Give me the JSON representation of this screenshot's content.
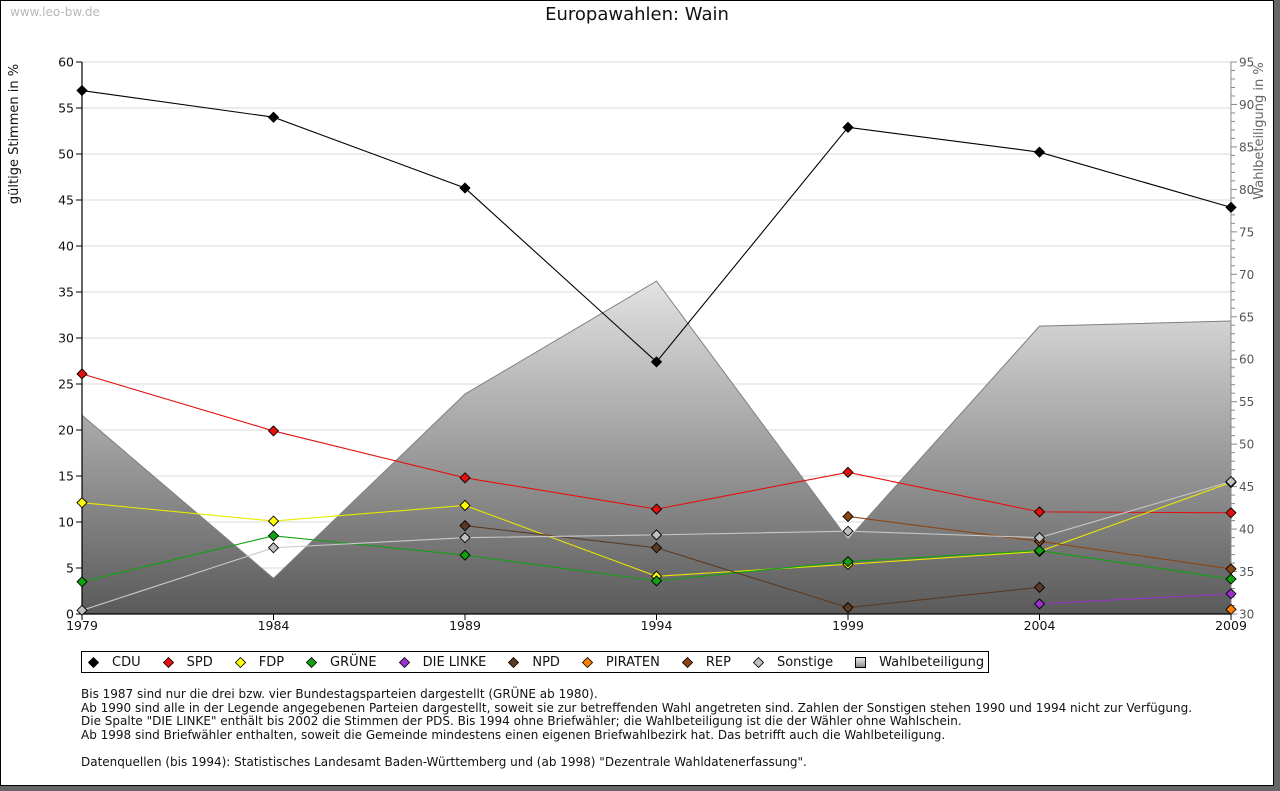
{
  "watermark": "www.leo-bw.de",
  "title": "Europawahlen: Wain",
  "chart_data": {
    "type": "line",
    "title": "Europawahlen: Wain",
    "xlabel": "",
    "ylabel": "gültige Stimmen in %",
    "y2label": "Wahlbeteiligung in %",
    "x": [
      "1979",
      "1984",
      "1989",
      "1994",
      "1999",
      "2004",
      "2009"
    ],
    "ylim": [
      0,
      60
    ],
    "y2lim": [
      30,
      95
    ],
    "yticks": [
      "0",
      "5",
      "10",
      "15",
      "20",
      "25",
      "30",
      "35",
      "40",
      "45",
      "50",
      "55",
      "60"
    ],
    "y2ticks": [
      "30",
      "35",
      "40",
      "45",
      "50",
      "55",
      "60",
      "65",
      "70",
      "75",
      "80",
      "85",
      "90",
      "95"
    ],
    "grid": true,
    "legend_position": "bottom",
    "area_series": {
      "name": "Wahlbeteiligung",
      "axis": "right",
      "color": "#888888",
      "values": [
        53.4,
        34.2,
        55.9,
        69.2,
        38.8,
        63.9,
        64.5
      ]
    },
    "series": [
      {
        "name": "CDU",
        "color": "#000000",
        "line": "#000000",
        "values": [
          56.9,
          54.0,
          46.3,
          27.4,
          52.9,
          50.2,
          44.2
        ]
      },
      {
        "name": "SPD",
        "color": "#e31010",
        "line": "#e31010",
        "values": [
          26.1,
          19.9,
          14.8,
          11.4,
          15.4,
          11.1,
          11.0
        ]
      },
      {
        "name": "FDP",
        "color": "#ffff00",
        "line": "#e8e800",
        "values": [
          12.1,
          10.1,
          11.8,
          4.1,
          5.4,
          6.8,
          14.3
        ]
      },
      {
        "name": "GRÜNE",
        "color": "#10a010",
        "line": "#10a010",
        "values": [
          3.5,
          8.5,
          6.4,
          3.6,
          5.7,
          6.9,
          3.8
        ]
      },
      {
        "name": "DIE LINKE",
        "color": "#9932cc",
        "line": "#9932cc",
        "values": [
          null,
          null,
          null,
          null,
          null,
          1.1,
          2.2
        ]
      },
      {
        "name": "NPD",
        "color": "#5a3a22",
        "line": "#5a3a22",
        "values": [
          null,
          null,
          9.6,
          7.2,
          0.7,
          2.9,
          null
        ]
      },
      {
        "name": "PIRATEN",
        "color": "#ff8000",
        "line": "#ff8000",
        "values": [
          null,
          null,
          null,
          null,
          null,
          null,
          0.5
        ]
      },
      {
        "name": "REP",
        "color": "#8b4513",
        "line": "#8b4513",
        "values": [
          null,
          null,
          null,
          null,
          10.6,
          7.9,
          4.9
        ]
      },
      {
        "name": "Sonstige",
        "color": "#c0c0c0",
        "line": "#c8c8c8",
        "values": [
          0.4,
          7.2,
          8.3,
          8.6,
          9.0,
          8.3,
          14.4
        ]
      }
    ]
  },
  "legend": [
    {
      "label": "CDU",
      "color": "#000000",
      "shape": "diamond"
    },
    {
      "label": "SPD",
      "color": "#e31010",
      "shape": "diamond"
    },
    {
      "label": "FDP",
      "color": "#ffff00",
      "shape": "diamond"
    },
    {
      "label": "GRÜNE",
      "color": "#10a010",
      "shape": "diamond"
    },
    {
      "label": "DIE LINKE",
      "color": "#9932cc",
      "shape": "diamond"
    },
    {
      "label": "NPD",
      "color": "#5a3a22",
      "shape": "diamond"
    },
    {
      "label": "PIRATEN",
      "color": "#ff8000",
      "shape": "diamond"
    },
    {
      "label": "REP",
      "color": "#8b4513",
      "shape": "diamond"
    },
    {
      "label": "Sonstige",
      "color": "#c0c0c0",
      "shape": "diamond"
    },
    {
      "label": "Wahlbeteiligung",
      "color": "#aaaaaa",
      "shape": "square"
    }
  ],
  "notes": [
    "Bis 1987 sind nur die drei bzw. vier Bundestagsparteien dargestellt (GRÜNE ab 1980).",
    "Ab 1990 sind alle in der Legende angegebenen Parteien dargestellt, soweit sie zur betreffenden Wahl angetreten sind. Zahlen der Sonstigen stehen 1990 und 1994 nicht zur Verfügung.",
    "Die Spalte \"DIE LINKE\" enthält bis 2002 die Stimmen der PDS. Bis 1994 ohne Briefwähler; die Wahlbeteiligung ist die der Wähler ohne Wahlschein.",
    "Ab 1998 sind Briefwähler enthalten, soweit die Gemeinde mindestens einen eigenen Briefwahlbezirk hat. Das betrifft auch die Wahlbeteiligung.",
    "",
    "Datenquellen (bis 1994): Statistisches Landesamt Baden-Württemberg und (ab 1998) \"Dezentrale Wahldatenerfassung\"."
  ]
}
